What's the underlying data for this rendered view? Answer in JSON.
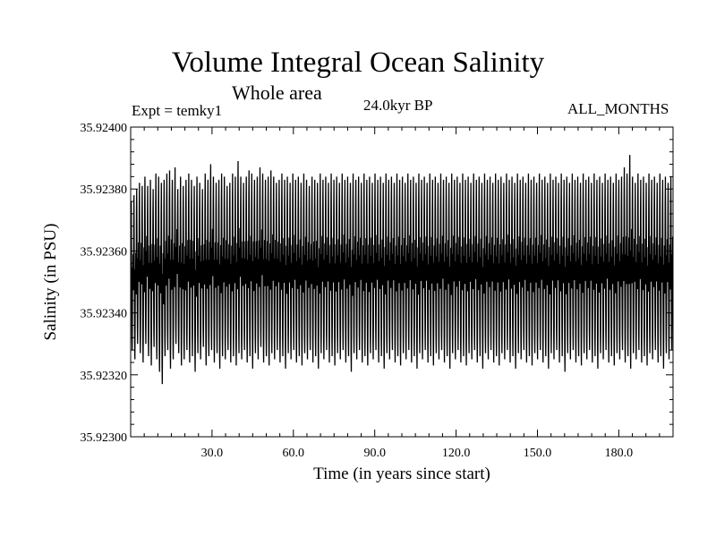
{
  "header": {
    "title": "Volume Integral Ocean Salinity",
    "subtitle": "Whole area",
    "experiment": "Expt = temky1",
    "period": "24.0kyr BP",
    "months": "ALL_MONTHS"
  },
  "chart_data": {
    "type": "line",
    "title": "Volume Integral Ocean Salinity",
    "subtitle": "Whole area",
    "xlabel": "Time (in years since start)",
    "ylabel": "Salinity (in PSU)",
    "xlim": [
      0,
      200
    ],
    "ylim": [
      35.923,
      35.924
    ],
    "xticks": [
      30,
      60,
      90,
      120,
      150,
      180
    ],
    "xtick_labels": [
      "30.0",
      "60.0",
      "90.0",
      "120.0",
      "150.0",
      "180.0"
    ],
    "yticks": [
      35.923,
      35.9232,
      35.9234,
      35.9236,
      35.9238,
      35.924
    ],
    "ytick_labels": [
      "35.92300",
      "35.92320",
      "35.92340",
      "35.92360",
      "35.92380",
      "35.92400"
    ],
    "grid": false,
    "line_color": "#000000",
    "series": [
      {
        "sampling": "monthly",
        "x_start": 0,
        "x_end": 200,
        "annual_max": [
          35.92376,
          35.92378,
          35.9238,
          35.92382,
          35.92381,
          35.92384,
          35.92381,
          35.92383,
          35.9238,
          35.92385,
          35.92384,
          35.92382,
          35.92383,
          35.92385,
          35.92386,
          35.92383,
          35.92387,
          35.9238,
          35.92384,
          35.92381,
          35.92383,
          35.92385,
          35.92383,
          35.92381,
          35.92384,
          35.92382,
          35.9238,
          35.92385,
          35.92383,
          35.92388,
          35.92384,
          35.92382,
          35.92383,
          35.92385,
          35.92384,
          35.92381,
          35.92382,
          35.92385,
          35.92384,
          35.92389,
          35.92384,
          35.92382,
          35.92384,
          35.92386,
          35.92385,
          35.92383,
          35.92384,
          35.92387,
          35.92385,
          35.92383,
          35.92384,
          35.92386,
          35.92384,
          35.92382,
          35.92383,
          35.92385,
          35.92383,
          35.92384,
          35.92382,
          35.92385,
          35.92383,
          35.92384,
          35.92382,
          35.92385,
          35.92383,
          35.92381,
          35.92384,
          35.92383,
          35.92382,
          35.92385,
          35.92383,
          35.92384,
          35.92382,
          35.92385,
          35.92383,
          35.92384,
          35.92382,
          35.92385,
          35.92383,
          35.92384,
          35.92382,
          35.92385,
          35.92383,
          35.92384,
          35.92382,
          35.92385,
          35.92383,
          35.92384,
          35.92382,
          35.92385,
          35.92383,
          35.92384,
          35.92382,
          35.92385,
          35.92383,
          35.92384,
          35.92382,
          35.92385,
          35.92383,
          35.92384,
          35.92382,
          35.92385,
          35.92383,
          35.92384,
          35.92382,
          35.92385,
          35.92383,
          35.92384,
          35.92382,
          35.92385,
          35.92383,
          35.92384,
          35.92382,
          35.92385,
          35.92383,
          35.92384,
          35.92382,
          35.92385,
          35.92383,
          35.92384,
          35.92382,
          35.92385,
          35.92383,
          35.92384,
          35.92382,
          35.92385,
          35.92383,
          35.92384,
          35.92382,
          35.92385,
          35.92383,
          35.92384,
          35.92382,
          35.92385,
          35.92383,
          35.92384,
          35.92382,
          35.92385,
          35.92383,
          35.92384,
          35.92382,
          35.92385,
          35.92383,
          35.92384,
          35.92382,
          35.92385,
          35.92383,
          35.92384,
          35.92382,
          35.92385,
          35.92383,
          35.92384,
          35.92382,
          35.92385,
          35.92383,
          35.92384,
          35.92382,
          35.92385,
          35.92383,
          35.92384,
          35.92382,
          35.92385,
          35.92383,
          35.92384,
          35.92382,
          35.92385,
          35.92383,
          35.92384,
          35.92382,
          35.92385,
          35.92383,
          35.92384,
          35.92382,
          35.92385,
          35.92383,
          35.92384,
          35.92382,
          35.92385,
          35.92383,
          35.92384,
          35.92387,
          35.92385,
          35.92391,
          35.92384,
          35.92382,
          35.92385,
          35.92383,
          35.92384,
          35.92382,
          35.92385,
          35.92383,
          35.92384,
          35.92382,
          35.92385,
          35.92383,
          35.92384,
          35.92382,
          35.92384
        ],
        "annual_min": [
          35.92328,
          35.92325,
          35.9233,
          35.92327,
          35.92324,
          35.9233,
          35.92326,
          35.92323,
          35.92329,
          35.92325,
          35.92321,
          35.92317,
          35.92326,
          35.92328,
          35.92322,
          35.92325,
          35.9233,
          35.92327,
          35.92323,
          35.92325,
          35.92328,
          35.92324,
          35.92326,
          35.92321,
          35.92327,
          35.92325,
          35.92329,
          35.92323,
          35.92326,
          35.92328,
          35.92324,
          35.92327,
          35.92322,
          35.92326,
          35.92325,
          35.92328,
          35.92324,
          35.92326,
          35.92323,
          35.92327,
          35.92325,
          35.92328,
          35.92324,
          35.92326,
          35.92322,
          35.92327,
          35.92325,
          35.92329,
          35.92324,
          35.92326,
          35.92323,
          35.92327,
          35.92325,
          35.92328,
          35.92324,
          35.92326,
          35.92322,
          35.92327,
          35.92325,
          35.92328,
          35.92324,
          35.92326,
          35.92323,
          35.92327,
          35.92325,
          35.92328,
          35.92324,
          35.92326,
          35.92322,
          35.92327,
          35.92325,
          35.92328,
          35.92324,
          35.92326,
          35.92323,
          35.92327,
          35.92325,
          35.92328,
          35.92324,
          35.92326,
          35.92321,
          35.92327,
          35.92325,
          35.92328,
          35.92324,
          35.92326,
          35.92323,
          35.92327,
          35.92325,
          35.92328,
          35.92324,
          35.92326,
          35.92322,
          35.92327,
          35.92325,
          35.92328,
          35.92324,
          35.92326,
          35.92323,
          35.92327,
          35.92325,
          35.92328,
          35.92324,
          35.92326,
          35.92322,
          35.92327,
          35.92325,
          35.92328,
          35.92324,
          35.92326,
          35.92323,
          35.92327,
          35.92325,
          35.92328,
          35.92324,
          35.92326,
          35.92322,
          35.92327,
          35.92325,
          35.92328,
          35.92324,
          35.92326,
          35.92323,
          35.92327,
          35.92325,
          35.92328,
          35.92324,
          35.92326,
          35.92322,
          35.92327,
          35.92325,
          35.92328,
          35.92324,
          35.92326,
          35.92323,
          35.92327,
          35.92325,
          35.92328,
          35.92324,
          35.92326,
          35.92322,
          35.92327,
          35.92325,
          35.92328,
          35.92324,
          35.92326,
          35.92323,
          35.92327,
          35.92325,
          35.92328,
          35.92324,
          35.92326,
          35.92322,
          35.92327,
          35.92325,
          35.92328,
          35.92324,
          35.92326,
          35.92321,
          35.92327,
          35.92325,
          35.92328,
          35.92324,
          35.92326,
          35.92323,
          35.92327,
          35.92325,
          35.92328,
          35.92324,
          35.92326,
          35.92322,
          35.92327,
          35.92325,
          35.92328,
          35.92324,
          35.92326,
          35.92323,
          35.92327,
          35.92325,
          35.92328,
          35.92324,
          35.92326,
          35.92322,
          35.92327,
          35.92325,
          35.92328,
          35.92324,
          35.92326,
          35.92323,
          35.92327,
          35.92325,
          35.92328,
          35.92324,
          35.92326,
          35.92322,
          35.92327,
          35.92325,
          35.92328,
          35.92324,
          35.92326
        ]
      }
    ]
  }
}
